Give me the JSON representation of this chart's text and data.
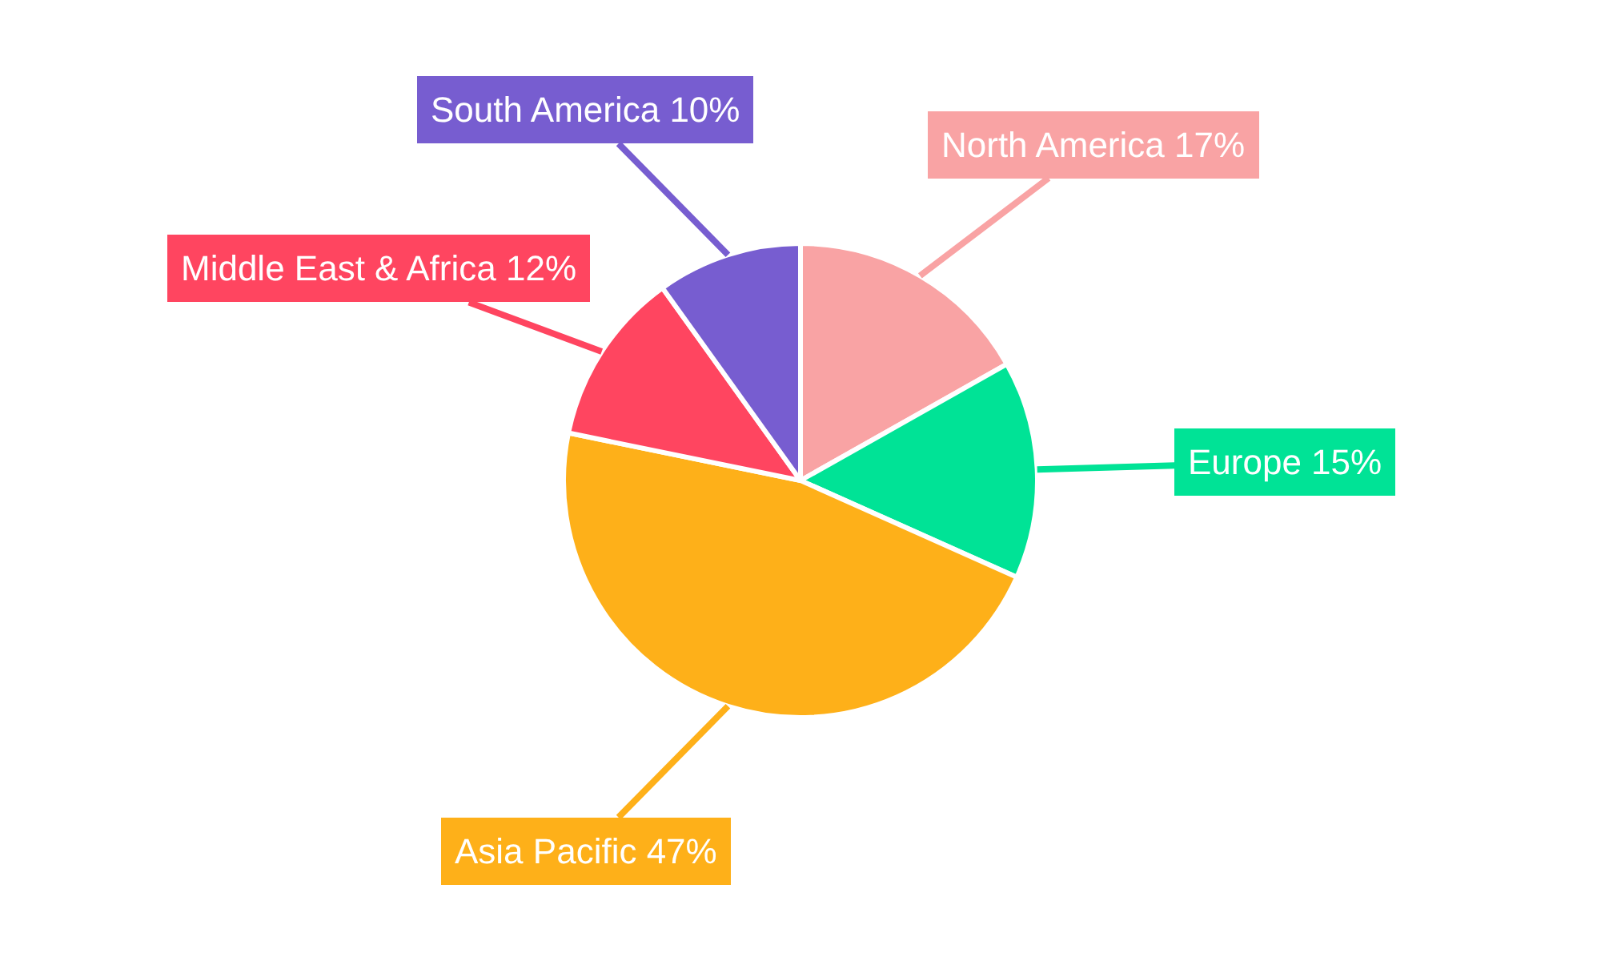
{
  "chart_data": {
    "type": "pie",
    "categories": [
      "North America",
      "Europe",
      "Asia Pacific",
      "Middle East & Africa",
      "South America"
    ],
    "values": [
      17,
      15,
      47,
      12,
      10
    ],
    "value_labels": [
      "17%",
      "15%",
      "47%",
      "12%",
      "10%"
    ],
    "colors": [
      "#f9a3a4",
      "#00e396",
      "#feb019",
      "#ff4560",
      "#775dd0"
    ],
    "legend": false
  }
}
